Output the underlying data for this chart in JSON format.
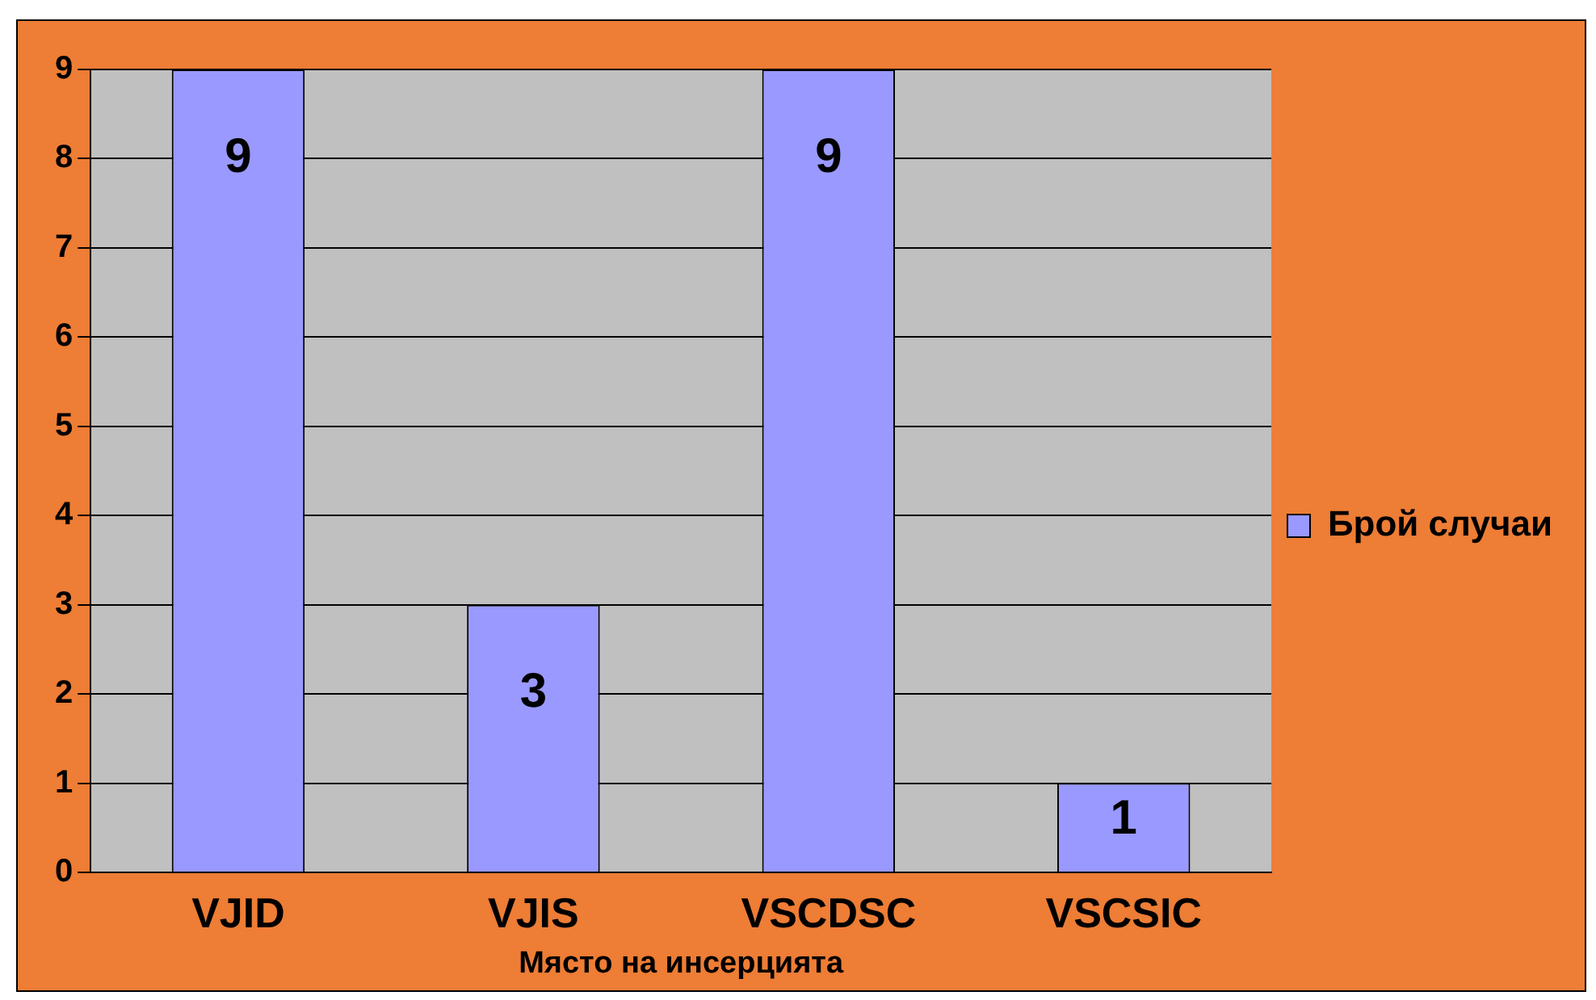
{
  "chart_data": {
    "type": "bar",
    "categories": [
      "VJID",
      "VJIS",
      "VSCDSC",
      "VSCSIC"
    ],
    "series": [
      {
        "name": "Брой случаи",
        "color": "#9999ff",
        "values": [
          9,
          3,
          9,
          1
        ]
      }
    ],
    "xlabel": "Място на инсерцията",
    "ylim": [
      0,
      9
    ],
    "yticks": [
      0,
      1,
      2,
      3,
      4,
      5,
      6,
      7,
      8,
      9
    ],
    "grid": "y",
    "legend": "right",
    "data_labels": true
  }
}
